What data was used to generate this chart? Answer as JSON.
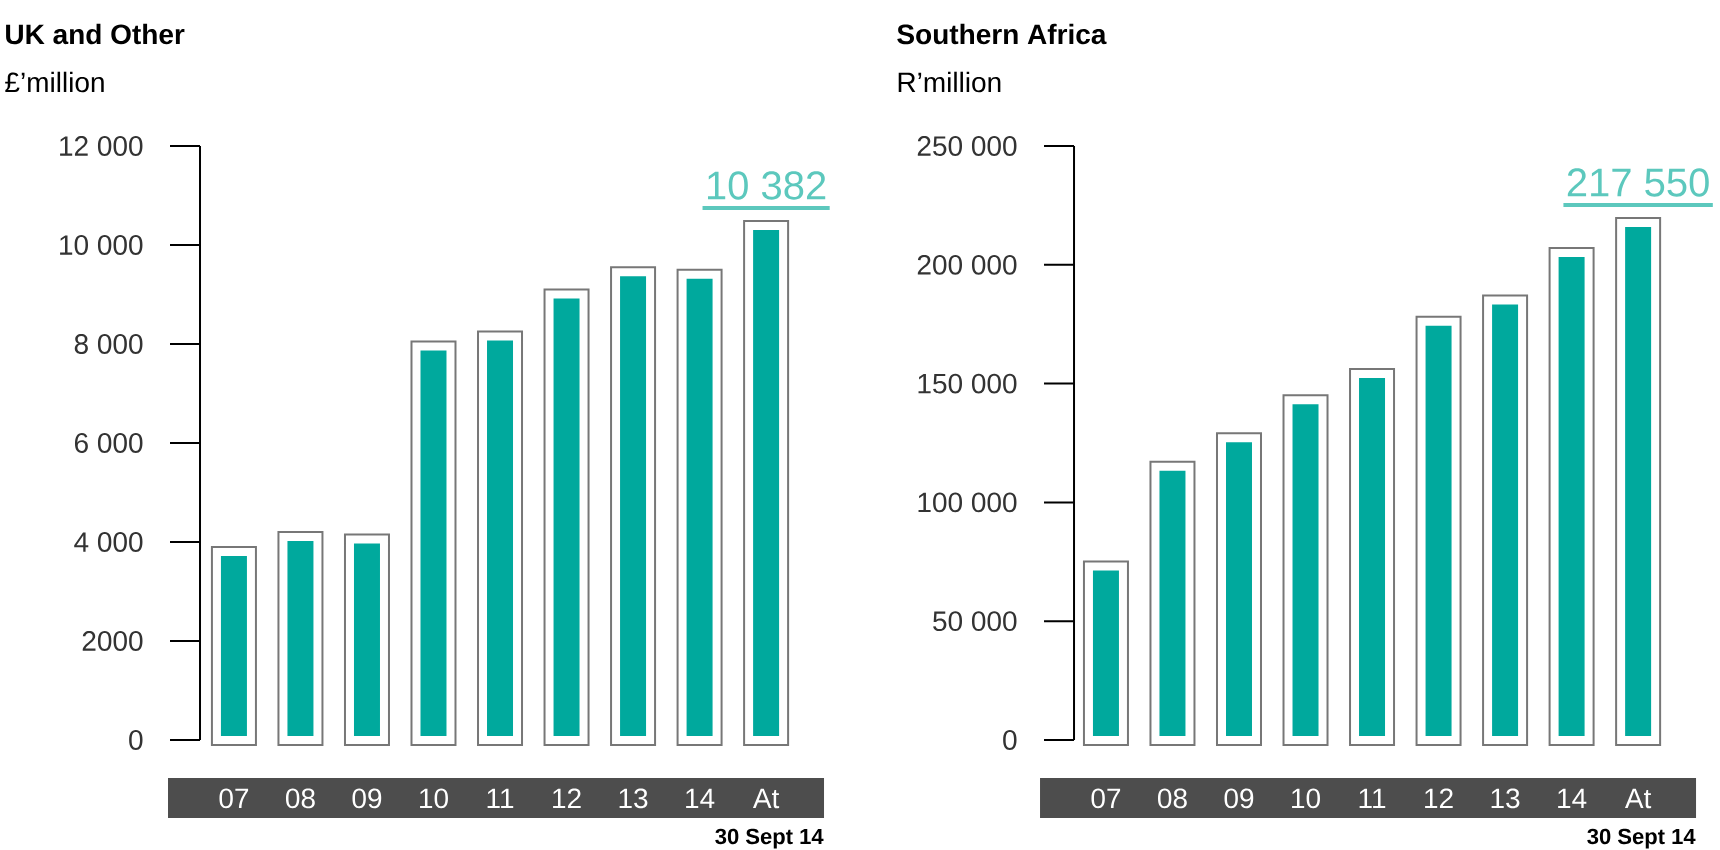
{
  "chart_data": [
    {
      "type": "bar",
      "title": "UK and Other",
      "ylabel": "£’million",
      "categories": [
        "07",
        "08",
        "09",
        "10",
        "11",
        "12",
        "13",
        "14",
        "At"
      ],
      "values": [
        3800,
        4100,
        4050,
        7950,
        8150,
        9000,
        9450,
        9400,
        10382
      ],
      "color": "#00a99d",
      "value_labels": [
        null,
        null,
        null,
        null,
        null,
        null,
        null,
        null,
        "10 382"
      ],
      "ylim": [
        0,
        12000
      ],
      "yticks": [
        0,
        2000,
        {
          "value": 4000,
          "label": "4 000"
        },
        {
          "value": 6000,
          "label": "6 000"
        },
        {
          "value": 8000,
          "label": "8 000"
        },
        {
          "value": 10000,
          "label": "10 000"
        },
        {
          "value": 12000,
          "label": "12 000"
        }
      ],
      "annotations": [
        "30 Sept 14"
      ]
    },
    {
      "type": "bar",
      "title": "Southern Africa",
      "ylabel": "R’million",
      "categories": [
        "07",
        "08",
        "09",
        "10",
        "11",
        "12",
        "13",
        "14",
        "At"
      ],
      "values": [
        73000,
        115000,
        127000,
        143000,
        154000,
        176000,
        185000,
        205000,
        217550
      ],
      "color": "#00a99d",
      "value_labels": [
        null,
        null,
        null,
        null,
        null,
        null,
        null,
        null,
        "217 550"
      ],
      "ylim": [
        0,
        250000
      ],
      "yticks": [
        0,
        {
          "value": 50000,
          "label": "50 000"
        },
        {
          "value": 100000,
          "label": "100 000"
        },
        {
          "value": 150000,
          "label": "150 000"
        },
        {
          "value": 200000,
          "label": "200 000"
        },
        {
          "value": 250000,
          "label": "250 000"
        }
      ],
      "annotations": [
        "30 Sept 14"
      ]
    }
  ]
}
